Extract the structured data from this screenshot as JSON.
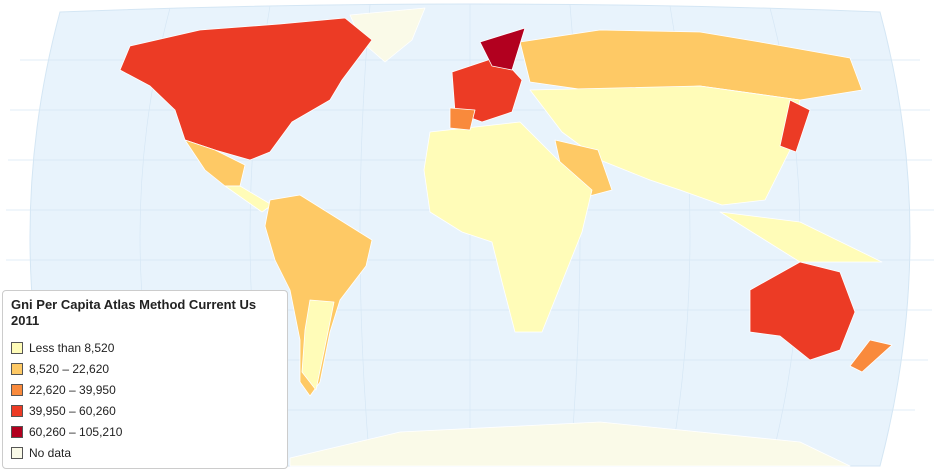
{
  "map": {
    "title": "Gni Per Capita Atlas Method Current Us 2011",
    "legend": [
      {
        "label": "Less than 8,520",
        "color": "#fffcb8"
      },
      {
        "label": "8,520 – 22,620",
        "color": "#fec965"
      },
      {
        "label": "22,620 – 39,950",
        "color": "#f98a3c"
      },
      {
        "label": "39,950 – 60,260",
        "color": "#ec3b25"
      },
      {
        "label": "60,260 – 105,210",
        "color": "#b2001f"
      },
      {
        "label": "No data",
        "color": "#fafae8"
      }
    ]
  }
}
